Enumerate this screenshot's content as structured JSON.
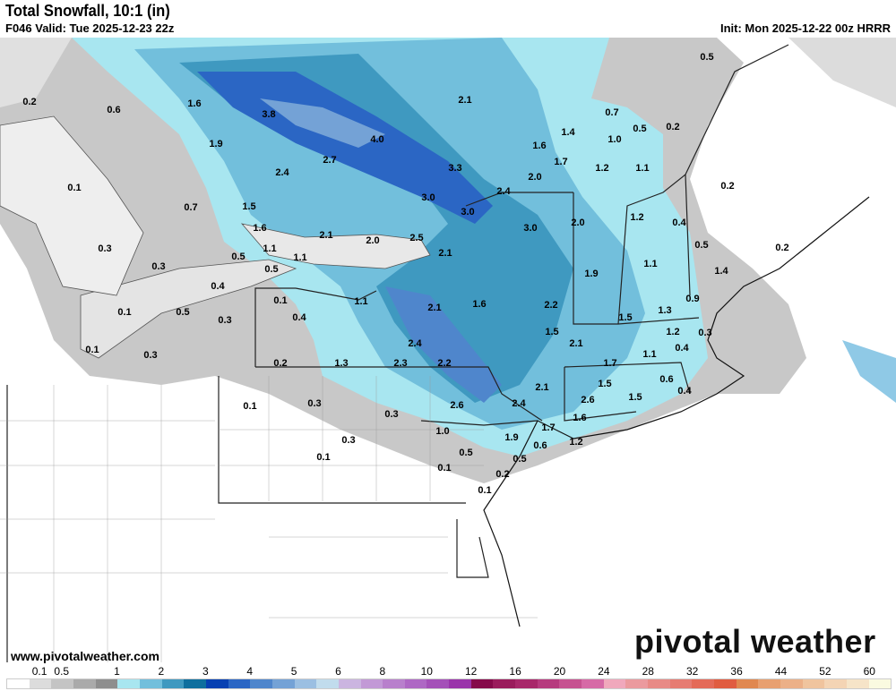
{
  "header": {
    "title": "Total Snowfall, 10:1 (in)",
    "valid": "F046 Valid: Tue 2025-12-23 22z",
    "init": "Init: Mon 2025-12-22 00z HRRR"
  },
  "footer": {
    "site": "www.pivotalweather.com",
    "logo": "pivotal weather"
  },
  "legend": {
    "ticks": [
      "0.1",
      "0.5",
      "1",
      "2",
      "3",
      "4",
      "5",
      "6",
      "8",
      "10",
      "12",
      "16",
      "20",
      "24",
      "28",
      "32",
      "36",
      "44",
      "52",
      "60"
    ],
    "colors": [
      "#ffffff",
      "#dcdcdc",
      "#c4c4c4",
      "#aaaaaa",
      "#8e8e8e",
      "#a8e6f0",
      "#72bfdc",
      "#3f99c0",
      "#0f6f9e",
      "#0740b2",
      "#2b66c4",
      "#4f86cc",
      "#74a2d6",
      "#9bbfe2",
      "#c1dced",
      "#cbb5e0",
      "#c299d6",
      "#b880cc",
      "#ae68c4",
      "#a450b8",
      "#9a34aa",
      "#850a4a",
      "#9a1c5c",
      "#a8286a",
      "#b63b7e",
      "#c65290",
      "#d66aa6",
      "#f0a8bc",
      "#eb9a9e",
      "#e88a86",
      "#e67c72",
      "#e46a58",
      "#e05c40",
      "#e08850",
      "#e8a070",
      "#ecb088",
      "#f0c49e",
      "#f4d4b4",
      "#f6e4c8",
      "#fafae0"
    ]
  },
  "map": {
    "labels": [
      "0.2",
      "0.6",
      "1.6",
      "3.8",
      "1.9",
      "4.0",
      "2.7",
      "2.4",
      "2.1",
      "1.6",
      "1.4",
      "0.7",
      "0.5",
      "0.2",
      "0.5",
      "1.0",
      "3.3",
      "2.0",
      "1.7",
      "1.2",
      "1.1",
      "0.1",
      "0.7",
      "1.5",
      "3.0",
      "3.0",
      "2.4",
      "0.2",
      "2.0",
      "1.2",
      "0.4",
      "0.3",
      "1.6",
      "2.1",
      "2.0",
      "2.5",
      "3.0",
      "1.1",
      "1.1",
      "2.1",
      "0.5",
      "0.2",
      "0.3",
      "0.5",
      "0.5",
      "0.4",
      "1.1",
      "1.9",
      "1.4",
      "0.1",
      "1.1",
      "2.1",
      "1.6",
      "2.2",
      "0.9",
      "0.1",
      "0.5",
      "0.3",
      "0.4",
      "1.3",
      "1.5",
      "2.4",
      "1.5",
      "1.2",
      "0.4",
      "0.3",
      "0.1",
      "0.3",
      "0.2",
      "1.3",
      "2.3",
      "2.2",
      "2.1",
      "1.7",
      "1.1",
      "1.5",
      "0.6",
      "0.4",
      "0.1",
      "0.3",
      "0.3",
      "2.6",
      "2.4",
      "2.1",
      "2.6",
      "1.5",
      "1.6",
      "1.7",
      "1.0",
      "1.9",
      "0.3",
      "0.5",
      "0.6",
      "1.2",
      "0.1",
      "0.5",
      "0.1",
      "0.2",
      "0.1"
    ]
  }
}
